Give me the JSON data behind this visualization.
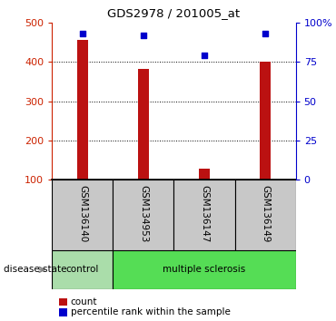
{
  "title": "GDS2978 / 201005_at",
  "samples": [
    "GSM136140",
    "GSM134953",
    "GSM136147",
    "GSM136149"
  ],
  "counts": [
    455,
    382,
    128,
    400
  ],
  "percentiles": [
    93,
    92,
    79,
    93
  ],
  "ylim_left": [
    100,
    500
  ],
  "yticks_left": [
    100,
    200,
    300,
    400,
    500
  ],
  "ytick_labels_left": [
    "100",
    "200",
    "300",
    "400",
    "500"
  ],
  "yticks_right": [
    0,
    25,
    50,
    75,
    100
  ],
  "ytick_labels_right": [
    "0",
    "25",
    "50",
    "75",
    "100%"
  ],
  "bar_color": "#BB1111",
  "dot_color": "#0000CC",
  "tick_color_left": "#CC2200",
  "tick_color_right": "#0000CC",
  "label_box_color": "#C8C8C8",
  "control_box_color": "#AADDAA",
  "ms_box_color": "#55DD55",
  "disease_state_label": "disease state",
  "legend_count": "count",
  "legend_percentile": "percentile rank within the sample",
  "gridlines_at": [
    200,
    300,
    400
  ],
  "figwidth": 3.7,
  "figheight": 3.54,
  "dpi": 100
}
